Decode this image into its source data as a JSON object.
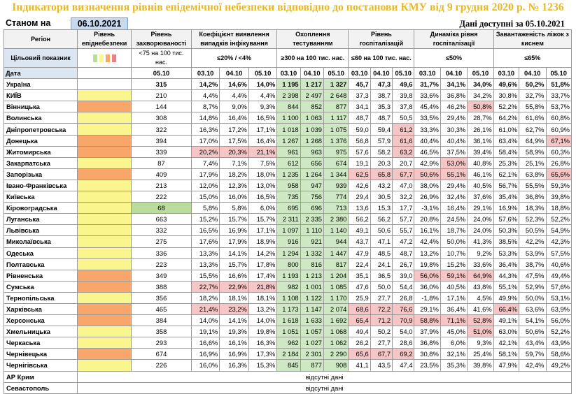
{
  "title": "Індикатори визначення рівнів епідемічної небезпеки відповідно до постанови КМУ від 9 грудня 2020 р. № 1236",
  "state_label": "Станом на",
  "state_date": "06.10.2021",
  "available_text": "Дані доступні за 05.10.2021",
  "colors": {
    "title": "#e6b824",
    "yellow": "#fbf58d",
    "orange": "#f8a66a",
    "green": "#b9dd9c",
    "red_cell": "#f6c5c5",
    "green_cell": "#cfe8c4"
  },
  "headers": {
    "region": "Регіон",
    "level": "Рівень епіднебезпеки",
    "incidence": "Рівень захворюваності",
    "detection": "Коефіцієнт виявлення випадків інфікування",
    "testing": "Охоплення тестуванням",
    "hospitalization": "Рівень госпіталізацій",
    "dynamics": "Динаміка рівня госпіталізації",
    "oxygen": "Завантаженість ліжок з киснем",
    "target_label": "Цільовий показник",
    "date_label": "Дата",
    "t_incidence": "<75 на 100 тис. нас.",
    "t_detection": "≤20% / <4%",
    "t_testing": "≥300 на 100 тис. нас.",
    "t_hospitalization": "≤60 на 100 тис. нас.",
    "t_dynamics": "≤50%",
    "t_oxygen": "≤65%",
    "target_swatch_colors": [
      "#b9dd9c",
      "#fbf58d",
      "#f8a66a",
      "#f08080"
    ],
    "dates": [
      "05.10",
      "03.10",
      "04.10",
      "05.10",
      "03.10",
      "04.10",
      "05.10",
      "03.10",
      "04.10",
      "05.10",
      "03.10",
      "04.10",
      "05.10",
      "03.10",
      "04.10",
      "05.10"
    ]
  },
  "rows": [
    {
      "r": "Україна",
      "c": "",
      "v": [
        "315",
        "14,2%",
        "14,6%",
        "14,0%",
        "1 195",
        "1 217",
        "1 327",
        "45,7",
        "47,3",
        "49,6",
        "31,7%",
        "34,1%",
        "34,0%",
        "49,6%",
        "50,2%",
        "51,8%"
      ],
      "h": []
    },
    {
      "r": "КИЇВ",
      "c": "y",
      "v": [
        "210",
        "4,4%",
        "4,4%",
        "4,4%",
        "2 398",
        "2 497",
        "2 648",
        "37,3",
        "38,7",
        "39,8",
        "33,6%",
        "36,8%",
        "34,2%",
        "30,8%",
        "32,7%",
        "33,7%"
      ],
      "h": []
    },
    {
      "r": "Вінницька",
      "c": "o",
      "v": [
        "144",
        "8,7%",
        "9,0%",
        "9,3%",
        "844",
        "852",
        "877",
        "34,1",
        "35,3",
        "37,8",
        "45,4%",
        "46,2%",
        "50,8%",
        "52,2%",
        "55,8%",
        "53,7%"
      ],
      "h": [
        12
      ]
    },
    {
      "r": "Волинська",
      "c": "y",
      "v": [
        "308",
        "14,8%",
        "16,4%",
        "16,5%",
        "1 100",
        "1 063",
        "1 117",
        "48,7",
        "48,7",
        "50,5",
        "33,5%",
        "29,4%",
        "28,7%",
        "64,2%",
        "61,6%",
        "60,8%"
      ],
      "h": []
    },
    {
      "r": "Дніпропетровська",
      "c": "y",
      "v": [
        "322",
        "16,3%",
        "17,2%",
        "17,1%",
        "1 018",
        "1 039",
        "1 075",
        "59,0",
        "59,4",
        "61,2",
        "33,3%",
        "30,3%",
        "26,1%",
        "61,0%",
        "62,7%",
        "60,9%"
      ],
      "h": [
        9
      ]
    },
    {
      "r": "Донецька",
      "c": "o",
      "v": [
        "394",
        "17,0%",
        "17,5%",
        "16,4%",
        "1 267",
        "1 268",
        "1 376",
        "56,8",
        "57,9",
        "61,6",
        "40,4%",
        "40,4%",
        "36,1%",
        "63,4%",
        "64,9%",
        "67,1%"
      ],
      "h": [
        9,
        15
      ]
    },
    {
      "r": "Житомирська",
      "c": "o",
      "v": [
        "339",
        "20,2%",
        "20,3%",
        "21,1%",
        "961",
        "963",
        "975",
        "57,6",
        "58,2",
        "63,2",
        "46,5%",
        "37,5%",
        "39,4%",
        "58,4%",
        "58,9%",
        "60,3%"
      ],
      "h": [
        1,
        2,
        3,
        9
      ]
    },
    {
      "r": "Закарпатська",
      "c": "y",
      "v": [
        "87",
        "7,4%",
        "7,1%",
        "7,5%",
        "612",
        "656",
        "674",
        "19,1",
        "20,3",
        "20,7",
        "42,9%",
        "53,0%",
        "40,8%",
        "25,3%",
        "25,1%",
        "26,8%"
      ],
      "h": [
        11
      ]
    },
    {
      "r": "Запорізька",
      "c": "o",
      "v": [
        "409",
        "17,9%",
        "18,2%",
        "18,0%",
        "1 235",
        "1 264",
        "1 344",
        "62,5",
        "65,8",
        "67,7",
        "50,6%",
        "55,1%",
        "46,1%",
        "62,1%",
        "63,8%",
        "65,6%"
      ],
      "h": [
        7,
        8,
        9,
        10,
        11,
        15
      ]
    },
    {
      "r": "Івано-Франківська",
      "c": "y",
      "v": [
        "213",
        "12,0%",
        "12,3%",
        "13,0%",
        "958",
        "947",
        "939",
        "42,6",
        "43,2",
        "47,0",
        "38,0%",
        "29,4%",
        "40,5%",
        "56,7%",
        "55,5%",
        "59,3%"
      ],
      "h": []
    },
    {
      "r": "Київська",
      "c": "y",
      "v": [
        "222",
        "15,0%",
        "16,0%",
        "16,5%",
        "735",
        "756",
        "774",
        "29,4",
        "30,5",
        "32,2",
        "26,9%",
        "32,4%",
        "37,6%",
        "35,4%",
        "36,8%",
        "39,8%"
      ],
      "h": []
    },
    {
      "r": "Кіровоградська",
      "c": "y",
      "v": [
        "68",
        "5,8%",
        "5,8%",
        "6,0%",
        "695",
        "696",
        "713",
        "13,6",
        "15,3",
        "17,7",
        "-3,1%",
        "16,4%",
        "29,1%",
        "16,9%",
        "18,3%",
        "18,8%"
      ],
      "h": []
    },
    {
      "r": "Луганська",
      "c": "y",
      "v": [
        "663",
        "15,2%",
        "15,7%",
        "15,7%",
        "2 311",
        "2 335",
        "2 380",
        "56,2",
        "56,2",
        "57,7",
        "20,8%",
        "24,5%",
        "24,0%",
        "57,6%",
        "52,3%",
        "52,2%"
      ],
      "h": []
    },
    {
      "r": "Львівська",
      "c": "y",
      "v": [
        "332",
        "16,5%",
        "16,9%",
        "17,1%",
        "1 097",
        "1 110",
        "1 140",
        "49,1",
        "50,6",
        "55,7",
        "16,1%",
        "18,7%",
        "24,0%",
        "50,3%",
        "50,5%",
        "54,9%"
      ],
      "h": []
    },
    {
      "r": "Миколаївська",
      "c": "y",
      "v": [
        "275",
        "17,6%",
        "17,9%",
        "18,9%",
        "916",
        "921",
        "944",
        "43,7",
        "47,1",
        "47,2",
        "42,4%",
        "50,0%",
        "41,3%",
        "38,5%",
        "42,2%",
        "42,3%"
      ],
      "h": []
    },
    {
      "r": "Одеська",
      "c": "y",
      "v": [
        "336",
        "13,3%",
        "14,1%",
        "14,2%",
        "1 294",
        "1 332",
        "1 447",
        "47,9",
        "48,5",
        "48,7",
        "13,2%",
        "10,7%",
        "9,2%",
        "53,3%",
        "53,9%",
        "57,5%"
      ],
      "h": []
    },
    {
      "r": "Полтавська",
      "c": "y",
      "v": [
        "223",
        "13,3%",
        "15,7%",
        "17,8%",
        "800",
        "816",
        "817",
        "22,4",
        "24,1",
        "26,7",
        "19,8%",
        "15,2%",
        "33,6%",
        "36,4%",
        "38,7%",
        "40,6%"
      ],
      "h": []
    },
    {
      "r": "Рівненська",
      "c": "o",
      "v": [
        "349",
        "15,5%",
        "16,6%",
        "17,4%",
        "1 193",
        "1 213",
        "1 204",
        "35,1",
        "36,5",
        "39,0",
        "56,0%",
        "59,1%",
        "64,9%",
        "44,3%",
        "47,5%",
        "49,4%"
      ],
      "h": [
        10,
        11,
        12
      ]
    },
    {
      "r": "Сумська",
      "c": "o",
      "v": [
        "388",
        "22,7%",
        "22,9%",
        "21,8%",
        "982",
        "1 001",
        "1 085",
        "47,6",
        "50,0",
        "54,4",
        "36,0%",
        "40,5%",
        "43,8%",
        "55,1%",
        "52,9%",
        "57,6%"
      ],
      "h": [
        1,
        2,
        3
      ]
    },
    {
      "r": "Тернопільська",
      "c": "y",
      "v": [
        "356",
        "18,2%",
        "18,1%",
        "18,1%",
        "1 108",
        "1 122",
        "1 170",
        "25,9",
        "27,7",
        "26,8",
        "-1,8%",
        "17,1%",
        "4,5%",
        "49,9%",
        "50,0%",
        "53,1%"
      ],
      "h": []
    },
    {
      "r": "Харківська",
      "c": "o",
      "v": [
        "465",
        "21,4%",
        "23,2%",
        "13,2%",
        "1 173",
        "1 147",
        "2 074",
        "68,6",
        "72,2",
        "76,6",
        "29,1%",
        "36,4%",
        "41,6%",
        "66,4%",
        "63,6%",
        "63,9%"
      ],
      "h": [
        1,
        2,
        7,
        8,
        9,
        13
      ]
    },
    {
      "r": "Херсонська",
      "c": "o",
      "v": [
        "384",
        "14,0%",
        "14,1%",
        "14,0%",
        "1 618",
        "1 633",
        "1 692",
        "65,4",
        "71,2",
        "70,9",
        "58,8%",
        "71,1%",
        "52,8%",
        "49,1%",
        "54,1%",
        "56,0%"
      ],
      "h": [
        7,
        8,
        9,
        10,
        11,
        12
      ]
    },
    {
      "r": "Хмельницька",
      "c": "y",
      "v": [
        "358",
        "19,1%",
        "19,3%",
        "19,8%",
        "1 051",
        "1 057",
        "1 068",
        "49,4",
        "50,2",
        "54,0",
        "37,9%",
        "45,0%",
        "51,0%",
        "63,0%",
        "50,6%",
        "52,2%"
      ],
      "h": [
        12
      ]
    },
    {
      "r": "Черкаська",
      "c": "y",
      "v": [
        "293",
        "16,6%",
        "16,1%",
        "16,3%",
        "962",
        "1 027",
        "1 062",
        "26,2",
        "27,7",
        "28,6",
        "36,8%",
        "6,0%",
        "9,3%",
        "42,1%",
        "43,4%",
        "43,9%"
      ],
      "h": []
    },
    {
      "r": "Чернівецька",
      "c": "o",
      "v": [
        "674",
        "16,9%",
        "16,9%",
        "17,3%",
        "2 184",
        "2 301",
        "2 290",
        "65,6",
        "67,7",
        "69,2",
        "30,8%",
        "32,1%",
        "25,4%",
        "58,1%",
        "59,7%",
        "58,6%"
      ],
      "h": [
        7,
        8,
        9
      ]
    },
    {
      "r": "Чернігівська",
      "c": "y",
      "v": [
        "226",
        "16,0%",
        "16,3%",
        "15,3%",
        "845",
        "877",
        "908",
        "41,1",
        "43,5",
        "47,4",
        "23,5%",
        "35,3%",
        "39,8%",
        "47,9%",
        "42,4%",
        "49,2%"
      ],
      "h": []
    }
  ],
  "absent_rows": [
    {
      "r": "АР Крим",
      "text": "відсутні дані"
    },
    {
      "r": "Севастополь",
      "text": "відсутні дані"
    }
  ]
}
